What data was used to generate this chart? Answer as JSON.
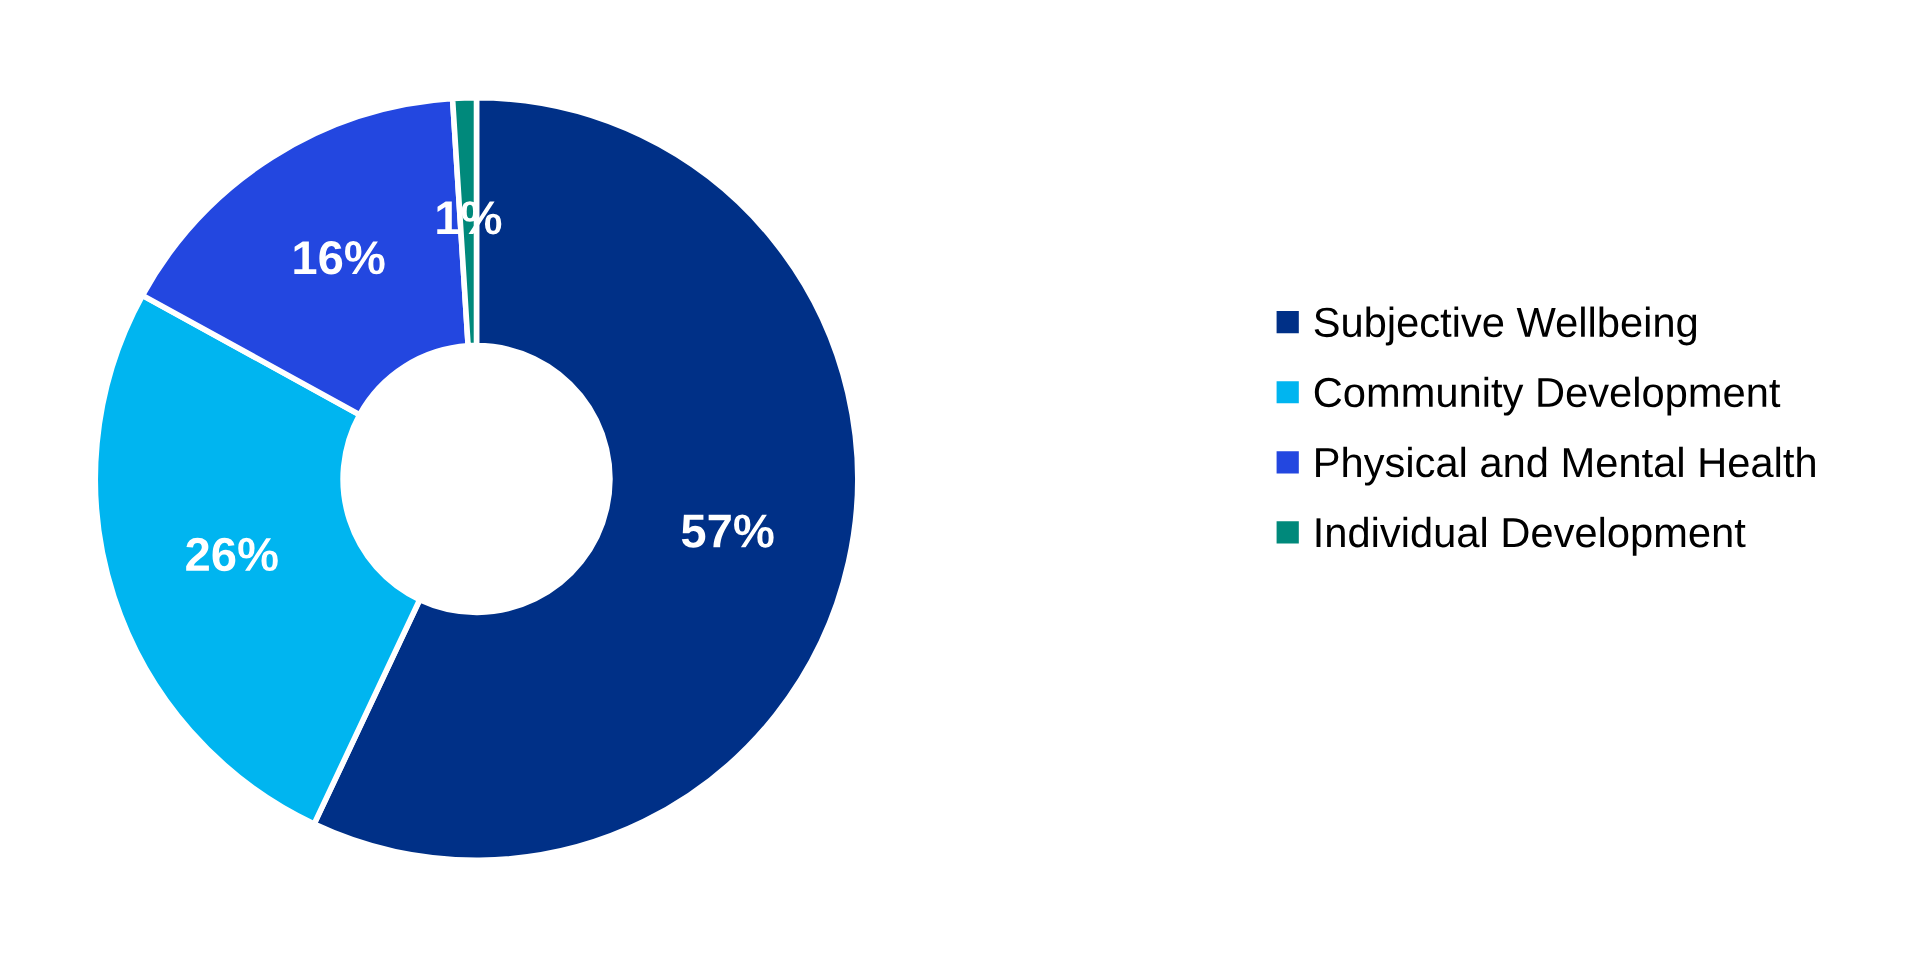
{
  "chart_data": {
    "type": "donut",
    "categories": [
      "Subjective Wellbeing",
      "Community Development",
      "Physical and Mental Health",
      "Individual Development"
    ],
    "values": [
      57,
      26,
      16,
      1
    ],
    "colors": [
      "#003087",
      "#00b5f0",
      "#2347e0",
      "#00897b"
    ],
    "value_labels": [
      "57%",
      "26%",
      "16%",
      "1%"
    ],
    "legend": "right"
  }
}
